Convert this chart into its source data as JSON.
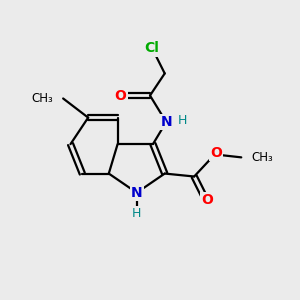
{
  "background_color": "#ebebeb",
  "bond_color": "#000000",
  "atom_colors": {
    "Cl": "#00aa00",
    "O": "#ff0000",
    "N": "#0000cc",
    "H": "#008888",
    "C": "#000000"
  },
  "figsize": [
    3.0,
    3.0
  ],
  "dpi": 100,
  "xlim": [
    0,
    10
  ],
  "ylim": [
    0,
    10
  ]
}
